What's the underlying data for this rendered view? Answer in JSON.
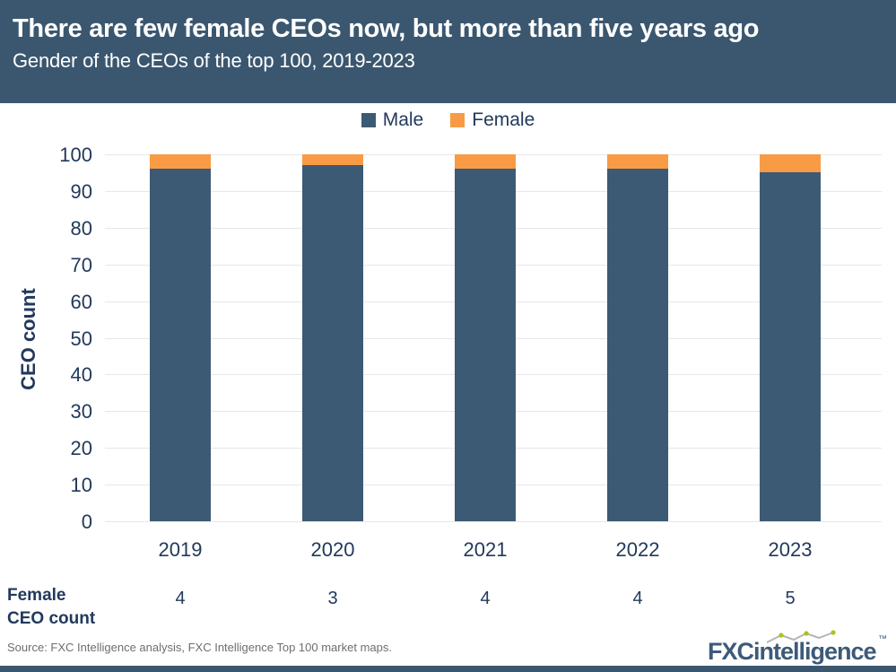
{
  "header": {
    "title": "There are few female CEOs now, but more than five years ago",
    "subtitle": "Gender of the CEOs of the top 100, 2019-2023"
  },
  "colors": {
    "header_bg": "#3b576f",
    "male": "#3d5a74",
    "female": "#f89b44",
    "text_navy": "#22395c",
    "gridline": "#e7e7e7",
    "source_gray": "#6e6e6e",
    "logo_navy": "#3d5a78",
    "logo_line_gray": "#b5b5b5",
    "logo_dot_green": "#a5c61e"
  },
  "chart_data": {
    "type": "bar",
    "stacked": true,
    "title": "There are few female CEOs now, but more than five years ago",
    "subtitle": "Gender of the CEOs of the top 100, 2019-2023",
    "categories": [
      "2019",
      "2020",
      "2021",
      "2022",
      "2023"
    ],
    "series": [
      {
        "name": "Male",
        "color": "#3d5a74",
        "values": [
          96,
          97,
          96,
          96,
          95
        ]
      },
      {
        "name": "Female",
        "color": "#f89b44",
        "values": [
          4,
          3,
          4,
          4,
          5
        ]
      }
    ],
    "xlabel": "",
    "ylabel": "CEO count",
    "ylim": [
      0,
      100
    ],
    "ytick_step": 10,
    "grid": true,
    "legend_position": "top"
  },
  "legend": [
    {
      "label": "Male",
      "color": "#3d5a74"
    },
    {
      "label": "Female",
      "color": "#f89b44"
    }
  ],
  "female_count_row": {
    "label_line1": "Female",
    "label_line2": "CEO count",
    "values": [
      "4",
      "3",
      "4",
      "4",
      "5"
    ]
  },
  "footer": {
    "source": "Source: FXC Intelligence analysis, FXC Intelligence Top 100 market maps.",
    "logo_text": "FXCintelligence",
    "logo_tm": "™"
  }
}
